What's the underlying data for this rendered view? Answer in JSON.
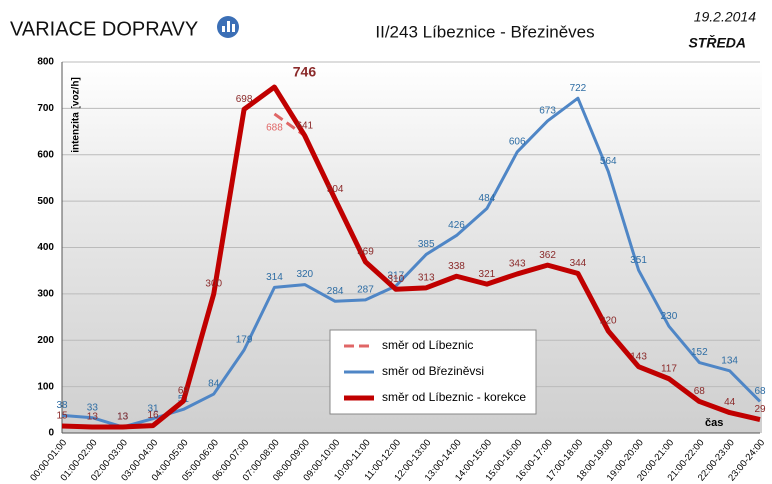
{
  "chart_data": {
    "type": "line",
    "title": "VARIACE DOPRAVY",
    "subtitle": "II/243 Líbeznice - Březiněves",
    "date": "19.2.2014",
    "day": "STŘEDA",
    "y_label": "intenzita [voz/h]",
    "x_label": "čas",
    "categories": [
      "00:00-01:00",
      "01:00-02:00",
      "02:00-03:00",
      "03:00-04:00",
      "04:00-05:00",
      "05:00-06:00",
      "06:00-07:00",
      "07:00-08:00",
      "08:00-09:00",
      "09:00-10:00",
      "10:00-11:00",
      "11:00-12:00",
      "12:00-13:00",
      "13:00-14:00",
      "14:00-15:00",
      "15:00-16:00",
      "16:00-17:00",
      "17:00-18:00",
      "18:00-19:00",
      "19:00-20:00",
      "20:00-21:00",
      "21:00-22:00",
      "22:00-23:00",
      "23:00-24:00"
    ],
    "series": [
      {
        "name": "směr od Líbeznic",
        "color": "#e06666",
        "dashed": true,
        "width": 3,
        "values": [
          null,
          null,
          null,
          null,
          null,
          null,
          null,
          688,
          641,
          null,
          null,
          null,
          null,
          null,
          null,
          null,
          null,
          null,
          null,
          null,
          null,
          null,
          null,
          null
        ],
        "value_labels": [
          null,
          null,
          null,
          null,
          null,
          null,
          null,
          "688",
          null,
          null,
          null,
          null,
          null,
          null,
          null,
          null,
          null,
          null,
          null,
          null,
          null,
          null,
          null,
          null
        ]
      },
      {
        "name": "směr od Březiněvsi",
        "color": "#4f86c6",
        "width": 3,
        "label_color": "#2e6da4",
        "values": [
          38,
          33,
          13,
          31,
          51,
          84,
          179,
          314,
          320,
          284,
          287,
          317,
          385,
          426,
          484,
          606,
          673,
          722,
          564,
          351,
          230,
          152,
          134,
          68
        ]
      },
      {
        "name": "směr od Líbeznic - korekce",
        "color": "#c00000",
        "width": 5,
        "label_color": "#8b2a2a",
        "values": [
          15,
          13,
          13,
          16,
          69,
          300,
          698,
          746,
          641,
          504,
          369,
          310,
          313,
          338,
          321,
          343,
          362,
          344,
          220,
          143,
          117,
          68,
          44,
          29
        ]
      }
    ],
    "ylim": [
      0,
      800
    ],
    "yticks": [
      0,
      100,
      200,
      300,
      400,
      500,
      600,
      700,
      800
    ],
    "grid": true
  }
}
